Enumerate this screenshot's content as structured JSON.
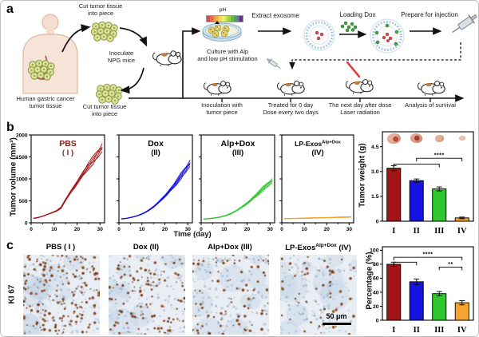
{
  "figure": {
    "panel_a": {
      "label": "a",
      "cut_top": "Cut tumor tissue\ninto piece",
      "inoculate": "Inoculate\nNPG mice",
      "cut_bottom": "Cut tumor tissue\ninto piece",
      "human_caption": "Human gastric cancer\ntumor tissue",
      "ph_label": "pH",
      "culture": "Culture with Alp\nand low pH stimulation",
      "extract": "Extract exosome",
      "loading": "Loading Dox",
      "prepare": "Prepare for injection",
      "timeline_steps": [
        "Inoculation with\ntumor piece",
        "Treated for 0 day\nDose every two days",
        "The next day after dose\nLaser radiation",
        "Analysis of survival"
      ]
    },
    "panel_b": {
      "label": "b",
      "ylabel": "Tumor volume (mm³)",
      "xlabel": "Time (day)"
    },
    "panel_c": {
      "label": "c",
      "row_label": "KI 67",
      "scalebar": "50 μm",
      "titles": [
        {
          "base": "PBS ( I )",
          "sup": "",
          "rest": ""
        },
        {
          "base": "Dox (II)",
          "sup": "",
          "rest": ""
        },
        {
          "base": "Alp+Dox (III)",
          "sup": "",
          "rest": ""
        },
        {
          "base": "LP-Exos",
          "sup": "Alp+Dox",
          "rest": " (IV)"
        }
      ]
    },
    "ph_colors": [
      "#d94f4f",
      "#e06a4f",
      "#eb8f4d",
      "#f2b54a",
      "#f5d94e",
      "#eef07a",
      "#cde24e",
      "#9ad24e",
      "#66b94e",
      "#4ba06b",
      "#8e5aa8",
      "#5b3a8e"
    ],
    "group_colors": [
      "#A31515",
      "#1414E0",
      "#2EC72E",
      "#F5A430"
    ]
  },
  "chart_data": [
    {
      "type": "line",
      "title": "PBS",
      "numeral": "( I )",
      "title_color": "#8B1A1A",
      "color": "#A31515",
      "replicates": 5,
      "x": [
        1,
        3,
        5,
        7,
        9,
        11,
        13,
        15,
        17,
        19,
        21,
        23,
        25,
        27,
        29,
        31
      ],
      "mean": [
        100,
        120,
        150,
        190,
        230,
        270,
        340,
        520,
        680,
        830,
        1000,
        1150,
        1300,
        1420,
        1560,
        1700
      ],
      "ylim": [
        0,
        2000
      ],
      "yticks": [
        0,
        500,
        1000,
        1500,
        2000
      ],
      "xticks": [
        0,
        10,
        20,
        30
      ]
    },
    {
      "type": "line",
      "title": "Dox",
      "numeral": "(II)",
      "title_color": "#000000",
      "color": "#1414E0",
      "replicates": 5,
      "x": [
        1,
        3,
        5,
        7,
        9,
        11,
        13,
        15,
        17,
        19,
        21,
        23,
        25,
        27,
        29,
        31
      ],
      "mean": [
        90,
        100,
        120,
        145,
        180,
        225,
        285,
        360,
        450,
        555,
        670,
        790,
        920,
        1060,
        1200,
        1345
      ],
      "ylim": [
        0,
        2000
      ],
      "yticks": [
        0,
        500,
        1000,
        1500,
        2000
      ],
      "xticks": [
        0,
        10,
        20,
        30
      ]
    },
    {
      "type": "line",
      "title": "Alp+Dox",
      "numeral": "(III)",
      "title_color": "#000000",
      "color": "#2EC72E",
      "replicates": 5,
      "x": [
        1,
        3,
        5,
        7,
        9,
        11,
        13,
        15,
        17,
        19,
        21,
        23,
        25,
        27,
        29,
        31
      ],
      "mean": [
        85,
        95,
        105,
        120,
        140,
        170,
        210,
        265,
        330,
        405,
        490,
        585,
        680,
        775,
        865,
        950
      ],
      "ylim": [
        0,
        2000
      ],
      "yticks": [
        0,
        500,
        1000,
        1500,
        2000
      ],
      "xticks": [
        0,
        10,
        20,
        30
      ]
    },
    {
      "type": "line",
      "title": "LP-Exos",
      "title_sup": "Alp+Dox",
      "numeral": "(IV)",
      "title_color": "#000000",
      "color": "#F5A430",
      "replicates": 5,
      "x": [
        1,
        3,
        5,
        7,
        9,
        11,
        13,
        15,
        17,
        19,
        21,
        23,
        25,
        27,
        29,
        31
      ],
      "mean": [
        95,
        97,
        99,
        101,
        104,
        106,
        109,
        111,
        114,
        116,
        119,
        121,
        124,
        127,
        130,
        133
      ],
      "ylim": [
        0,
        2000
      ],
      "yticks": [
        0,
        500,
        1000,
        1500,
        2000
      ],
      "xticks": [
        0,
        10,
        20,
        30
      ]
    },
    {
      "type": "bar",
      "ylabel": "Tumor weight (g)",
      "categories": [
        "I",
        "II",
        "III",
        "IV"
      ],
      "values": [
        3.2,
        2.45,
        1.95,
        0.2
      ],
      "errors": [
        0.15,
        0.1,
        0.12,
        0.05
      ],
      "colors": [
        "#A31515",
        "#1414E0",
        "#2EC72E",
        "#F5A430"
      ],
      "ylim": [
        0,
        5.4
      ],
      "yticks": [
        0,
        1.5,
        3.0,
        4.5
      ],
      "ytick_labels": [
        "0",
        "1.5",
        "3.0",
        "4.5"
      ],
      "sig": [
        {
          "from": 0,
          "to": 2,
          "y": 3.45,
          "label": ""
        },
        {
          "from": 1,
          "to": 3,
          "y": 3.8,
          "label": "****"
        }
      ]
    },
    {
      "type": "bar",
      "ylabel": "Percentage (%)",
      "categories": [
        "I",
        "II",
        "III",
        "IV"
      ],
      "values": [
        80,
        55,
        38,
        25
      ],
      "errors": [
        3,
        4,
        3,
        3
      ],
      "colors": [
        "#A31515",
        "#1414E0",
        "#2EC72E",
        "#F5A430"
      ],
      "ylim": [
        0,
        105
      ],
      "yticks": [
        0,
        20,
        40,
        60,
        80,
        100
      ],
      "ytick_labels": [
        "0",
        "20",
        "40",
        "60",
        "80",
        "100"
      ],
      "sig": [
        {
          "from": 0,
          "to": 3,
          "y": 90,
          "label": "****"
        },
        {
          "from": 0,
          "to": 1,
          "y": 83,
          "label": ""
        },
        {
          "from": 2,
          "to": 3,
          "y": 76,
          "label": "**"
        }
      ]
    }
  ]
}
